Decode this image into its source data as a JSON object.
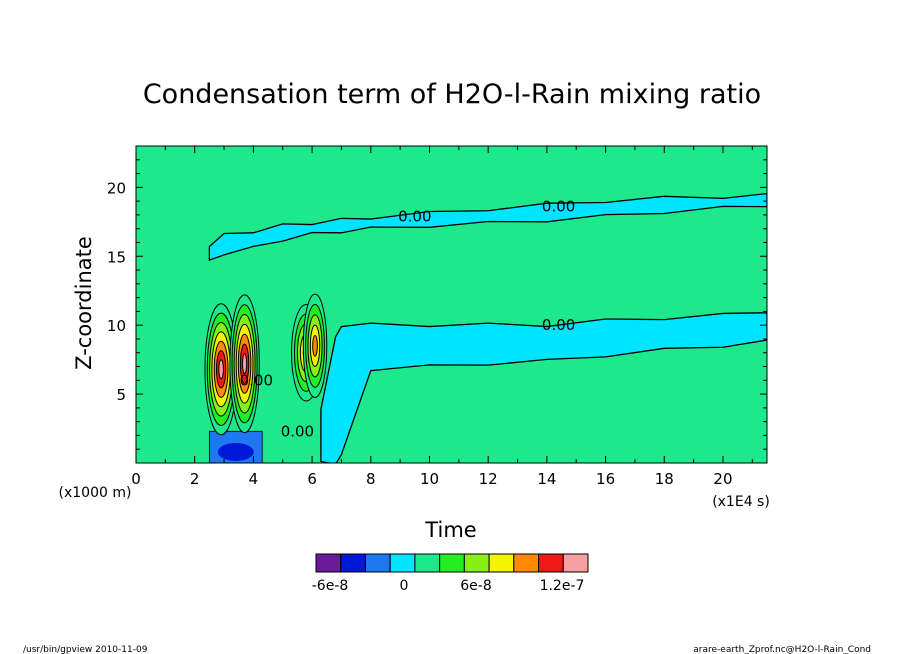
{
  "chart_data": {
    "type": "heatmap",
    "title": "Condensation term of H2O-l-Rain mixing ratio",
    "xlabel": "Time",
    "ylabel": "Z-coordinate",
    "x_unit": "(x1E4 s)",
    "y_unit": "(x1000 m)",
    "xlim": [
      0,
      21.5
    ],
    "ylim": [
      0,
      23
    ],
    "x_ticks": [
      "0",
      "2",
      "4",
      "6",
      "8",
      "10",
      "12",
      "14",
      "16",
      "18",
      "20"
    ],
    "y_ticks": [
      "5",
      "10",
      "15",
      "20"
    ],
    "contour_labels": [
      "0.00",
      "0.00",
      "0.00",
      "0.00",
      "0.00"
    ],
    "levels_colors": [
      "#6a1b9a",
      "#0018d8",
      "#1e78f0",
      "#00e5ff",
      "#1ee88c",
      "#22ee22",
      "#88f018",
      "#f4f400",
      "#ff8a00",
      "#f01818",
      "#f4a0a0"
    ],
    "colorbar_labels": [
      "-6e-8",
      "0",
      "6e-8",
      "1.2e-7"
    ],
    "upper_band": {
      "x": [
        2.5,
        3,
        4,
        5,
        6,
        7,
        8,
        10,
        12,
        14,
        16,
        18,
        20,
        21.5
      ],
      "top": [
        15.8,
        16.5,
        16.8,
        17.2,
        17.4,
        17.6,
        17.8,
        18.1,
        18.4,
        18.7,
        19.0,
        19.2,
        19.3,
        19.4
      ],
      "bottom": [
        14.6,
        15.2,
        15.6,
        16.2,
        16.6,
        16.8,
        17.0,
        17.2,
        17.4,
        17.6,
        17.9,
        18.2,
        18.5,
        18.7
      ]
    },
    "lower_band": {
      "x": [
        6.3,
        6.8,
        7,
        8,
        10,
        12,
        14,
        16,
        18,
        20,
        21.5
      ],
      "top": [
        4.0,
        9.0,
        10.0,
        10.0,
        10.0,
        10.0,
        10.0,
        10.3,
        10.5,
        10.7,
        11.0
      ],
      "bottom": [
        0,
        0,
        0.5,
        6.8,
        7.0,
        7.2,
        7.4,
        7.8,
        8.2,
        8.5,
        8.8
      ]
    },
    "convective_cells": [
      {
        "x": 2.9,
        "z": 6.8,
        "w": 0.55,
        "h": 9.5,
        "value": 1.1e-07
      },
      {
        "x": 3.7,
        "z": 7.2,
        "w": 0.5,
        "h": 10.0,
        "value": 1.15e-07
      },
      {
        "x": 5.8,
        "z": 8.0,
        "w": 0.5,
        "h": 7.0,
        "value": 7e-08
      },
      {
        "x": 6.1,
        "z": 8.5,
        "w": 0.4,
        "h": 7.5,
        "value": 6e-08
      }
    ],
    "negative_region": {
      "x": [
        2.5,
        4.3
      ],
      "z": [
        0,
        2.3
      ],
      "value": -6e-08
    }
  },
  "footer": {
    "left": "/usr/bin/gpview   2010-11-09",
    "right": "arare-earth_Zprof.nc@H2O-l-Rain_Cond"
  }
}
